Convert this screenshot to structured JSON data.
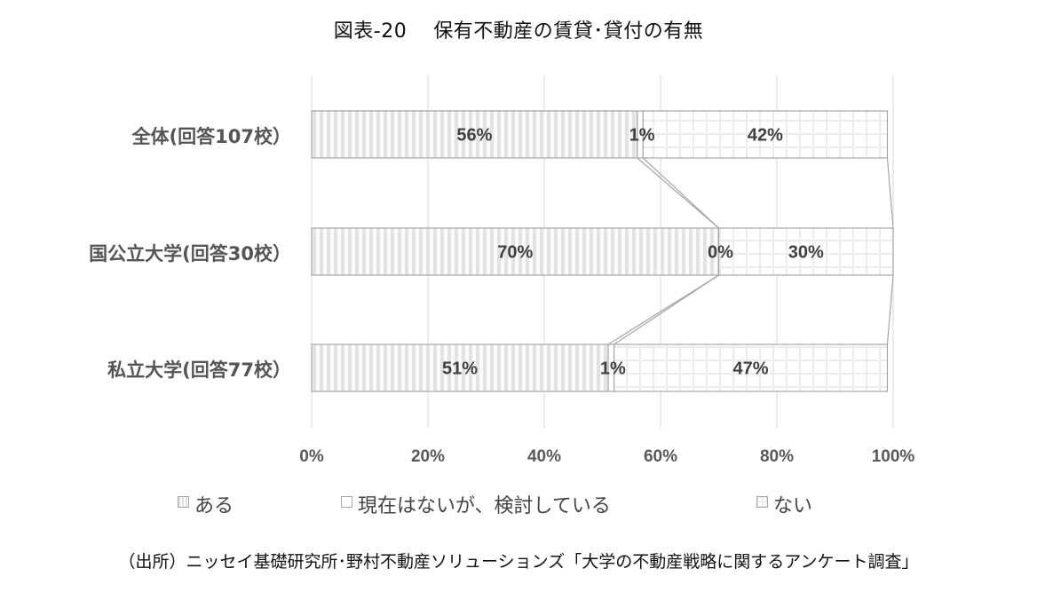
{
  "title": {
    "figure_no": "図表-20",
    "text": "保有不動産の賃貸･貸付の有無"
  },
  "chart_data": {
    "type": "bar",
    "orientation": "horizontal",
    "stacked": true,
    "percent_stacked": true,
    "title": "図表-20　保有不動産の賃貸･貸付の有無",
    "categories": [
      "全体(回答107校）",
      "国公立大学(回答30校）",
      "私立大学(回答77校）"
    ],
    "series": [
      {
        "name": "ある",
        "values": [
          56,
          70,
          51
        ],
        "labels": [
          "56%",
          "70%",
          "51%"
        ],
        "pattern": "vertical-stripes"
      },
      {
        "name": "現在はないが、検討している",
        "values": [
          1,
          0,
          1
        ],
        "labels": [
          "1%",
          "0%",
          "1%"
        ],
        "pattern": "plain"
      },
      {
        "name": "ない",
        "values": [
          42,
          30,
          47
        ],
        "labels": [
          "42%",
          "30%",
          "47%"
        ],
        "pattern": "grid"
      }
    ],
    "xlabel": "",
    "ylabel": "",
    "xlim": [
      0,
      100
    ],
    "x_ticks": [
      "0%",
      "20%",
      "40%",
      "60%",
      "80%",
      "100%"
    ],
    "grid": {
      "vertical": true,
      "horizontal": false
    },
    "series_lines": true,
    "legend_position": "bottom",
    "source": "（出所）ニッセイ基礎研究所･野村不動産ソリューションズ「大学の不動産戦略に関するアンケート調査」"
  },
  "legend": {
    "items": [
      {
        "label": "ある"
      },
      {
        "label": "現在はないが、検討している"
      },
      {
        "label": "ない"
      }
    ]
  },
  "source": "（出所）ニッセイ基礎研究所･野村不動産ソリューションズ「大学の不動産戦略に関するアンケート調査」",
  "colors": {
    "stripe_dark": "#e0e0e0",
    "stripe_light": "#fafafa",
    "grid_line": "#e6e6e6",
    "bar_border": "#a6a6a6",
    "gridline": "#d9d9d9",
    "label_text": "#404040",
    "axis_text": "#595959"
  }
}
